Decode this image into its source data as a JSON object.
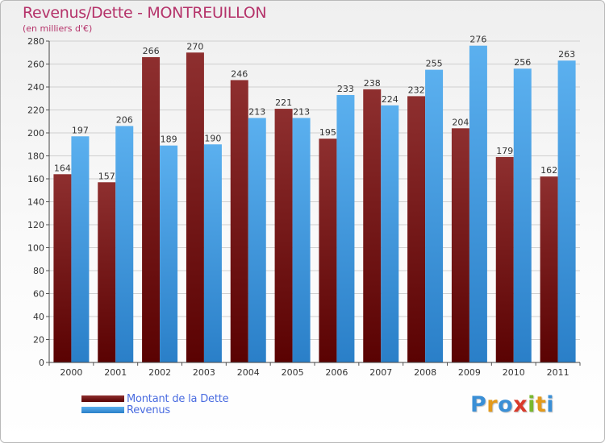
{
  "chart_data": {
    "type": "bar",
    "title": "Revenus/Dette - MONTREUILLON",
    "subtitle": "(en milliers d'€)",
    "categories": [
      "2000",
      "2001",
      "2002",
      "2003",
      "2004",
      "2005",
      "2006",
      "2007",
      "2008",
      "2009",
      "2010",
      "2011"
    ],
    "series": [
      {
        "name": "Montant de la Dette",
        "values": [
          164,
          157,
          266,
          270,
          246,
          221,
          195,
          238,
          232,
          204,
          179,
          162
        ],
        "color": "#7a1c1c"
      },
      {
        "name": "Revenus",
        "values": [
          197,
          206,
          189,
          190,
          213,
          213,
          233,
          224,
          255,
          276,
          256,
          263
        ],
        "color": "#4aa3e6"
      }
    ],
    "ylim": [
      0,
      280
    ],
    "yticks": [
      0,
      20,
      40,
      60,
      80,
      100,
      120,
      140,
      160,
      180,
      200,
      220,
      240,
      260,
      280
    ],
    "grid": true,
    "legend_position": "bottom-left"
  },
  "branding": {
    "logo_text": "Proxiti"
  }
}
